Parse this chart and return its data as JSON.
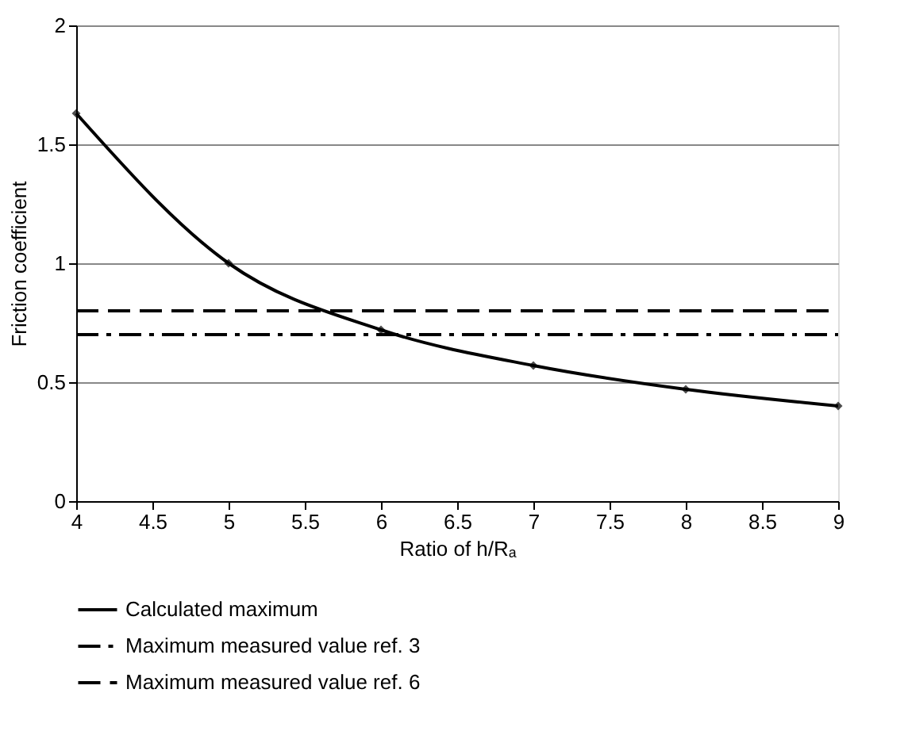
{
  "chart_data": {
    "type": "line",
    "xlabel": "Ratio of h/Rₐ",
    "ylabel": "Friction coefficient",
    "xlim": [
      4,
      9
    ],
    "xticks": [
      4,
      4.5,
      5,
      5.5,
      6,
      6.5,
      7,
      7.5,
      8,
      8.5,
      9
    ],
    "ylim": [
      0,
      2
    ],
    "yticks": [
      0,
      0.5,
      1,
      1.5,
      2
    ],
    "grid": "y",
    "legend": "bottom",
    "series": [
      {
        "name": "Calculated maximum",
        "color": "#000000",
        "x": [
          4,
          5,
          6,
          7,
          8,
          9
        ],
        "values": [
          1.63,
          1.0,
          0.72,
          0.57,
          0.47,
          0.4
        ],
        "marker": "diamond",
        "line_style": "solid"
      },
      {
        "name": "Maximum measured value ref. 3",
        "color": "#000000",
        "x": [
          4,
          9
        ],
        "values": [
          0.7,
          0.7
        ],
        "marker": "none",
        "line_style": "dashdot"
      },
      {
        "name": "Maximum measured value ref. 6",
        "color": "#000000",
        "x": [
          4,
          9
        ],
        "values": [
          0.8,
          0.8
        ],
        "marker": "none",
        "line_style": "dashed"
      }
    ]
  }
}
